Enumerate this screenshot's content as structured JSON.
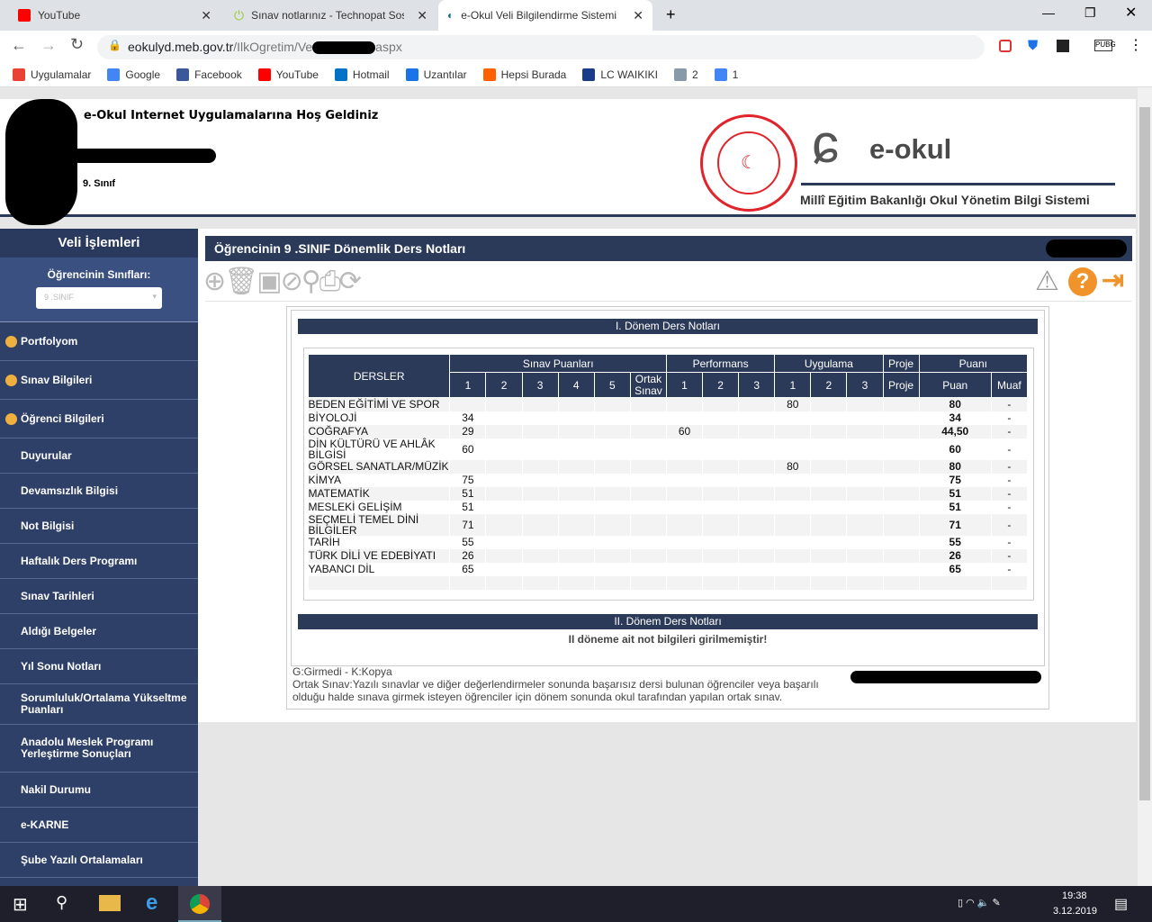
{
  "browser": {
    "tabs": [
      {
        "label": "YouTube",
        "icon": "youtube-icon"
      },
      {
        "label": "Sınav notlarınız - Technopat Sosy",
        "icon": "power-icon"
      },
      {
        "label": "e-Okul Veli Bilgilendirme Sistemi",
        "icon": "eokul-icon",
        "active": true
      }
    ],
    "url_host": "eokulyd.meb.gov.tr",
    "url_path": "/IlkOgretim/Ve",
    "url_end": "aspx",
    "bookmarks": [
      {
        "label": "Uygulamalar",
        "color": "#e94235"
      },
      {
        "label": "Google",
        "color": "#4285f4"
      },
      {
        "label": "Facebook",
        "color": "#3b5998"
      },
      {
        "label": "YouTube",
        "color": "#ff0000"
      },
      {
        "label": "Hotmail",
        "color": "#0072c6"
      },
      {
        "label": "Uzantılar",
        "color": "#1a73e8"
      },
      {
        "label": "Hepsi Burada",
        "color": "#ff6000"
      },
      {
        "label": "LC WAIKIKI",
        "color": "#1a3a8a"
      },
      {
        "label": "2",
        "color": "#8899aa"
      },
      {
        "label": "1",
        "color": "#4285f4"
      }
    ]
  },
  "header": {
    "welcome": "e-Okul Internet Uygulamalarına Hoş Geldiniz",
    "class_label": "9. Sınıf",
    "logo_text": "e-okul",
    "subtitle": "Millî Eğitim Bakanlığı Okul Yönetim Bilgi Sistemi"
  },
  "sidebar": {
    "title": "Veli İşlemleri",
    "classes_label": "Öğrencinin Sınıfları:",
    "class_select": "9 .SINIF",
    "sections": [
      "Portfolyom",
      "Sınav Bilgileri",
      "Öğrenci Bilgileri"
    ],
    "items": [
      "Duyurular",
      "Devamsızlık Bilgisi",
      "Not Bilgisi",
      "Haftalık Ders Programı",
      "Sınav Tarihleri",
      "Aldığı Belgeler",
      "Yıl Sonu Notları",
      "Sorumluluk/Ortalama Yükseltme Puanları",
      "Anadolu Meslek Programı Yerleştirme Sonuçları",
      "Nakil Durumu",
      "e-KARNE",
      "Şube Yazılı Ortalamaları"
    ]
  },
  "main": {
    "title": "Öğrencinin  9 .SINIF Dönemlik Ders Notları",
    "term1": "I. Dönem Ders Notları",
    "term2": "II. Dönem Ders Notları",
    "term2_msg": "II döneme ait not bilgileri girilmemiştir!",
    "legend1": "G:Girmedi - K:Kopya",
    "legend2": "Ortak Sınav:Yazılı sınavlar ve diğer değerlendirmeler sonunda başarısız dersi bulunan öğrenciler veya başarılı olduğu halde sınava girmek isteyen öğrenciler için dönem sonunda okul tarafından yapılan ortak sınav.",
    "table": {
      "groups": {
        "dersler": "DERSLER",
        "sinav": "Sınav Puanları",
        "performans": "Performans",
        "uygulama": "Uygulama",
        "proje": "Proje",
        "puani": "Puanı"
      },
      "subheaders": [
        "1",
        "2",
        "3",
        "4",
        "5",
        "Ortak Sınav",
        "1",
        "2",
        "3",
        "1",
        "2",
        "3",
        "Proje",
        "Puan",
        "Muaf"
      ],
      "rows": [
        {
          "ders": "BEDEN EĞİTİMİ VE SPOR",
          "cells": [
            "",
            "",
            "",
            "",
            "",
            "",
            "",
            "",
            "",
            "80",
            "",
            "",
            ""
          ],
          "puan": "80",
          "muaf": "-"
        },
        {
          "ders": "BİYOLOJİ",
          "cells": [
            "34",
            "",
            "",
            "",
            "",
            "",
            "",
            "",
            "",
            "",
            "",
            "",
            ""
          ],
          "puan": "34",
          "muaf": "-"
        },
        {
          "ders": "COĞRAFYA",
          "cells": [
            "29",
            "",
            "",
            "",
            "",
            "",
            "60",
            "",
            "",
            "",
            "",
            "",
            ""
          ],
          "puan": "44,50",
          "muaf": "-"
        },
        {
          "ders": "DİN KÜLTÜRÜ VE AHLÂK BİLGİSİ",
          "cells": [
            "60",
            "",
            "",
            "",
            "",
            "",
            "",
            "",
            "",
            "",
            "",
            "",
            ""
          ],
          "puan": "60",
          "muaf": "-"
        },
        {
          "ders": "GÖRSEL SANATLAR/MÜZİK",
          "cells": [
            "",
            "",
            "",
            "",
            "",
            "",
            "",
            "",
            "",
            "80",
            "",
            "",
            ""
          ],
          "puan": "80",
          "muaf": "-"
        },
        {
          "ders": "KİMYA",
          "cells": [
            "75",
            "",
            "",
            "",
            "",
            "",
            "",
            "",
            "",
            "",
            "",
            "",
            ""
          ],
          "puan": "75",
          "muaf": "-"
        },
        {
          "ders": "MATEMATİK",
          "cells": [
            "51",
            "",
            "",
            "",
            "",
            "",
            "",
            "",
            "",
            "",
            "",
            "",
            ""
          ],
          "puan": "51",
          "muaf": "-"
        },
        {
          "ders": "MESLEKİ GELİŞİM",
          "cells": [
            "51",
            "",
            "",
            "",
            "",
            "",
            "",
            "",
            "",
            "",
            "",
            "",
            ""
          ],
          "puan": "51",
          "muaf": "-"
        },
        {
          "ders": "SEÇMELİ TEMEL DİNİ BİLGİLER",
          "cells": [
            "71",
            "",
            "",
            "",
            "",
            "",
            "",
            "",
            "",
            "",
            "",
            "",
            ""
          ],
          "puan": "71",
          "muaf": "-"
        },
        {
          "ders": "TARİH",
          "cells": [
            "55",
            "",
            "",
            "",
            "",
            "",
            "",
            "",
            "",
            "",
            "",
            "",
            ""
          ],
          "puan": "55",
          "muaf": "-"
        },
        {
          "ders": "TÜRK DİLİ VE EDEBİYATI",
          "cells": [
            "26",
            "",
            "",
            "",
            "",
            "",
            "",
            "",
            "",
            "",
            "",
            "",
            ""
          ],
          "puan": "26",
          "muaf": "-"
        },
        {
          "ders": "YABANCI DİL",
          "cells": [
            "65",
            "",
            "",
            "",
            "",
            "",
            "",
            "",
            "",
            "",
            "",
            "",
            ""
          ],
          "puan": "65",
          "muaf": "-"
        }
      ]
    }
  },
  "colors": {
    "navy": "#2c3a5a",
    "sidebar": "#2e4068",
    "grade": "#8b0000",
    "orange": "#f0932b"
  },
  "taskbar": {
    "time": "19:38",
    "date": "3.12.2019"
  }
}
